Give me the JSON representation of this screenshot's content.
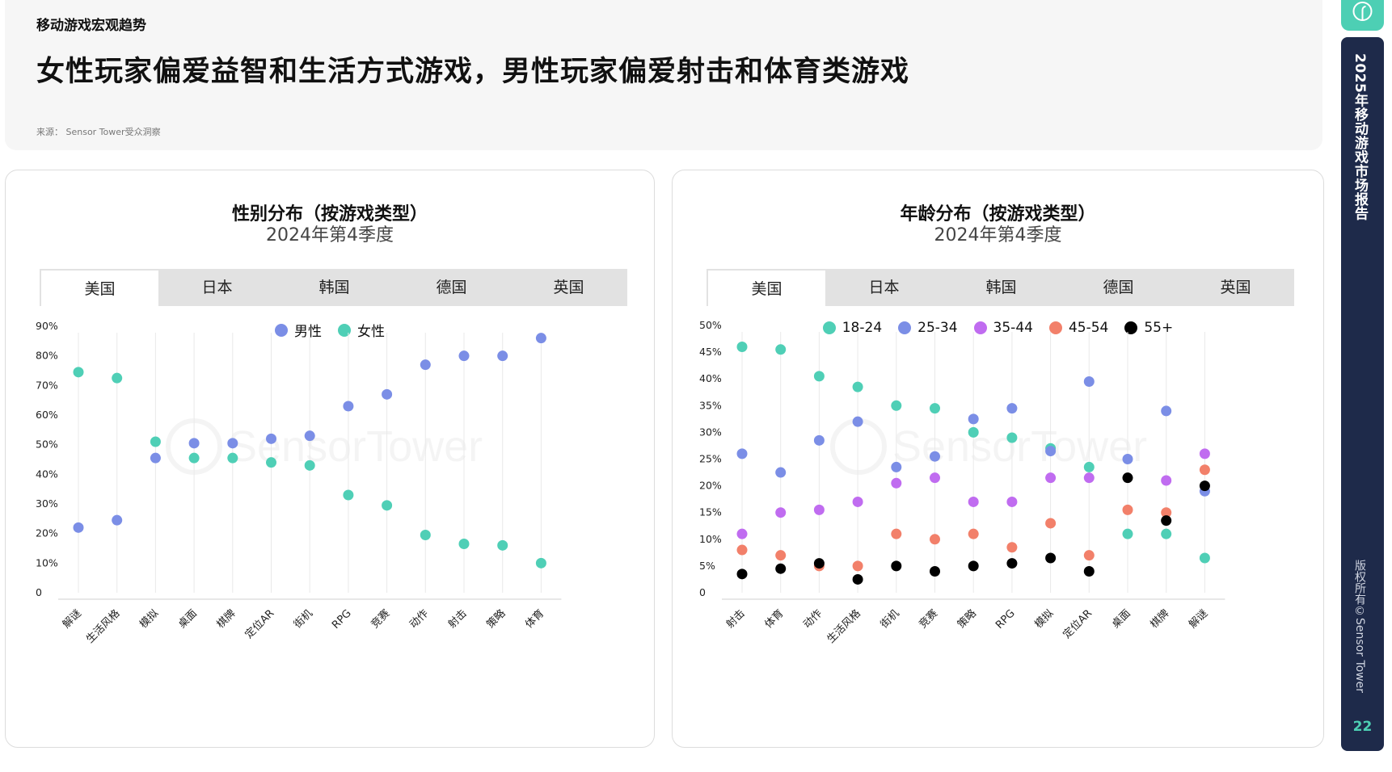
{
  "header": {
    "section": "移动游戏宏观趋势",
    "headline": "女性玩家偏爱益智和生活方式游戏，男性玩家偏爱射击和体育类游戏",
    "source": "来源： Sensor Tower受众洞察"
  },
  "sidebar": {
    "report_title": "2025年移动游戏市场报告",
    "copyright": "版权所有©Sensor Tower",
    "page": "22",
    "logo_icon": "sensor-tower-logo-icon"
  },
  "watermark": "SensorTower",
  "tabs": [
    "美国",
    "日本",
    "韩国",
    "德国",
    "英国"
  ],
  "active_tab": "美国",
  "chart_data": [
    {
      "type": "scatter",
      "title": "性别分布（按游戏类型）",
      "subtitle": "2024年第4季度",
      "categories": [
        "解谜",
        "生活风格",
        "模拟",
        "桌面",
        "棋牌",
        "定位AR",
        "街机",
        "RPG",
        "竞赛",
        "动作",
        "射击",
        "策略",
        "体育"
      ],
      "y_ticks": [
        "0",
        "10%",
        "20%",
        "30%",
        "40%",
        "50%",
        "60%",
        "70%",
        "80%",
        "90%"
      ],
      "ylim": [
        0,
        90
      ],
      "legend_position": "top-center",
      "series": [
        {
          "name": "男性",
          "color": "#7b8ee6",
          "values": [
            22,
            24.5,
            45.5,
            50.5,
            50.5,
            52,
            53,
            63,
            67,
            77,
            80,
            80,
            86
          ]
        },
        {
          "name": "女性",
          "color": "#4fcfb6",
          "values": [
            74.5,
            72.5,
            51,
            45.5,
            45.5,
            44,
            43,
            33,
            29.5,
            19.5,
            16.5,
            16,
            10
          ]
        }
      ]
    },
    {
      "type": "scatter",
      "title": "年龄分布（按游戏类型）",
      "subtitle": "2024年第4季度",
      "categories": [
        "射击",
        "体育",
        "动作",
        "生活风格",
        "街机",
        "竞赛",
        "策略",
        "RPG",
        "模拟",
        "定位AR",
        "桌面",
        "棋牌",
        "解谜"
      ],
      "y_ticks": [
        "0",
        "5%",
        "10%",
        "15%",
        "20%",
        "25%",
        "30%",
        "35%",
        "40%",
        "45%",
        "50%"
      ],
      "ylim": [
        0,
        50
      ],
      "legend_position": "top-center",
      "series": [
        {
          "name": "18-24",
          "color": "#4fcfb6",
          "values": [
            46,
            45.5,
            40.5,
            38.5,
            35,
            34.5,
            30,
            29,
            27,
            23.5,
            11,
            11,
            6.5
          ]
        },
        {
          "name": "25-34",
          "color": "#7b8ee6",
          "values": [
            26,
            22.5,
            28.5,
            32,
            23.5,
            25.5,
            32.5,
            34.5,
            26.5,
            39.5,
            25,
            34,
            19
          ]
        },
        {
          "name": "35-44",
          "color": "#c06cf0",
          "values": [
            11,
            15,
            15.5,
            17,
            20.5,
            21.5,
            17,
            17,
            21.5,
            21.5,
            null,
            21,
            26
          ]
        },
        {
          "name": "45-54",
          "color": "#f2806a",
          "values": [
            8,
            7,
            5,
            5,
            11,
            10,
            11,
            8.5,
            13,
            7,
            15.5,
            15,
            23
          ]
        },
        {
          "name": "55+",
          "color": "#000000",
          "values": [
            3.5,
            4.5,
            5.5,
            2.5,
            5,
            4,
            5,
            5.5,
            6.5,
            4,
            21.5,
            13.5,
            20
          ]
        }
      ]
    }
  ]
}
